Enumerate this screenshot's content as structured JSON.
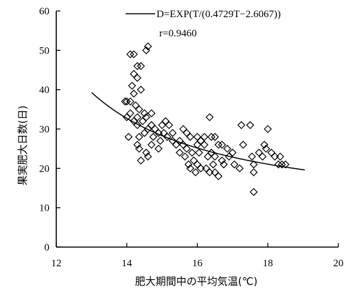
{
  "chart_data": {
    "type": "scatter",
    "xlabel": "肥大期間中の平均気温(℃)",
    "ylabel": "果実肥大日数(日)",
    "xlim": [
      12,
      20
    ],
    "ylim": [
      0,
      60
    ],
    "xticks": [
      12,
      14,
      16,
      18,
      20
    ],
    "yticks": [
      0,
      10,
      20,
      30,
      40,
      50,
      60
    ],
    "grid": false,
    "legend_position": "top-right",
    "fit": {
      "label": "D=EXP(T/(0.4729T−2.6067))",
      "r_label": "r=0.9460",
      "a": 0.4729,
      "b": 2.6067,
      "x_range": [
        13.0,
        19.05
      ]
    },
    "points": [
      [
        14.1,
        49
      ],
      [
        14.2,
        49
      ],
      [
        14.6,
        51
      ],
      [
        14.55,
        50
      ],
      [
        14.3,
        46
      ],
      [
        14.4,
        46
      ],
      [
        14.2,
        44
      ],
      [
        14.3,
        43
      ],
      [
        14.15,
        41
      ],
      [
        14.4,
        40
      ],
      [
        14.2,
        39
      ],
      [
        14.0,
        37
      ],
      [
        13.95,
        37
      ],
      [
        14.1,
        37
      ],
      [
        14.25,
        36
      ],
      [
        14.35,
        35
      ],
      [
        14.1,
        34
      ],
      [
        14.5,
        34
      ],
      [
        14.7,
        34
      ],
      [
        14.0,
        33
      ],
      [
        14.3,
        33
      ],
      [
        14.55,
        33
      ],
      [
        14.2,
        32
      ],
      [
        14.45,
        32
      ],
      [
        14.3,
        31
      ],
      [
        14.7,
        31
      ],
      [
        14.6,
        30
      ],
      [
        14.8,
        30
      ],
      [
        15.0,
        31
      ],
      [
        15.2,
        31
      ],
      [
        15.1,
        32
      ],
      [
        14.5,
        29
      ],
      [
        14.9,
        29
      ],
      [
        15.05,
        29
      ],
      [
        14.05,
        28
      ],
      [
        14.35,
        28
      ],
      [
        14.75,
        28
      ],
      [
        15.15,
        28
      ],
      [
        14.95,
        27
      ],
      [
        15.3,
        27
      ],
      [
        14.3,
        26
      ],
      [
        14.7,
        26
      ],
      [
        14.9,
        25
      ],
      [
        15.4,
        26
      ],
      [
        14.35,
        25
      ],
      [
        14.55,
        24
      ],
      [
        14.6,
        23
      ],
      [
        14.4,
        22
      ],
      [
        15.3,
        29
      ],
      [
        15.5,
        27
      ],
      [
        15.6,
        26
      ],
      [
        15.5,
        24
      ],
      [
        15.7,
        25
      ],
      [
        15.6,
        30
      ],
      [
        15.7,
        29
      ],
      [
        15.8,
        28
      ],
      [
        15.65,
        23
      ],
      [
        15.85,
        24
      ],
      [
        15.9,
        22
      ],
      [
        16.0,
        26
      ],
      [
        16.0,
        28
      ],
      [
        16.1,
        27
      ],
      [
        16.05,
        24
      ],
      [
        15.75,
        21
      ],
      [
        15.8,
        20
      ],
      [
        16.0,
        21
      ],
      [
        16.1,
        20
      ],
      [
        15.95,
        19
      ],
      [
        16.2,
        26
      ],
      [
        16.3,
        23
      ],
      [
        16.2,
        28
      ],
      [
        16.4,
        28
      ],
      [
        16.5,
        28
      ],
      [
        16.35,
        33
      ],
      [
        16.4,
        24
      ],
      [
        16.5,
        23
      ],
      [
        16.6,
        26
      ],
      [
        16.45,
        21
      ],
      [
        16.35,
        19
      ],
      [
        16.5,
        19
      ],
      [
        16.6,
        18
      ],
      [
        16.7,
        22
      ],
      [
        16.75,
        21
      ],
      [
        16.85,
        25
      ],
      [
        16.7,
        26
      ],
      [
        16.9,
        23
      ],
      [
        17.0,
        24
      ],
      [
        17.05,
        21
      ],
      [
        17.2,
        20
      ],
      [
        17.3,
        26
      ],
      [
        17.25,
        31
      ],
      [
        17.5,
        31
      ],
      [
        17.55,
        23
      ],
      [
        17.6,
        21
      ],
      [
        17.6,
        19
      ],
      [
        17.75,
        24
      ],
      [
        17.85,
        23
      ],
      [
        17.9,
        26
      ],
      [
        17.95,
        25
      ],
      [
        18.0,
        30
      ],
      [
        18.1,
        24
      ],
      [
        18.2,
        23
      ],
      [
        18.35,
        23
      ],
      [
        18.3,
        21
      ],
      [
        18.4,
        21
      ],
      [
        18.5,
        21
      ],
      [
        17.6,
        14
      ],
      [
        16.25,
        20
      ]
    ]
  }
}
